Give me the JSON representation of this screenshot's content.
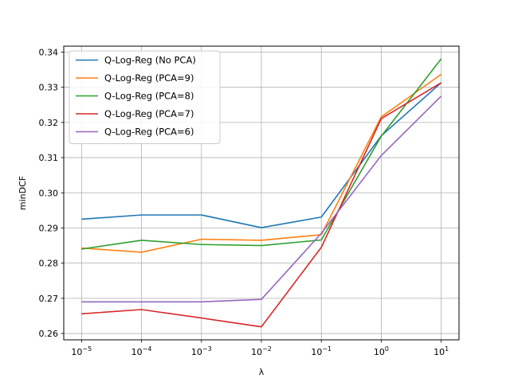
{
  "chart_data": {
    "type": "line",
    "title": "",
    "xlabel": "λ",
    "ylabel": "minDCF",
    "x_scale": "log",
    "x": [
      1e-05,
      0.0001,
      0.001,
      0.01,
      0.1,
      1,
      10
    ],
    "x_tick_labels": [
      {
        "base": "10",
        "exp": "−5"
      },
      {
        "base": "10",
        "exp": "−4"
      },
      {
        "base": "10",
        "exp": "−3"
      },
      {
        "base": "10",
        "exp": "−2"
      },
      {
        "base": "10",
        "exp": "−1"
      },
      {
        "base": "10",
        "exp": "0"
      },
      {
        "base": "10",
        "exp": "1"
      }
    ],
    "y_ticks": [
      0.26,
      0.27,
      0.28,
      0.29,
      0.3,
      0.31,
      0.32,
      0.33,
      0.34
    ],
    "y_tick_labels": [
      "0.26",
      "0.27",
      "0.28",
      "0.29",
      "0.30",
      "0.31",
      "0.32",
      "0.33",
      "0.34"
    ],
    "ylim": [
      0.2582,
      0.3417
    ],
    "grid": true,
    "legend_position": "top-left",
    "series": [
      {
        "name": "Q-Log-Reg (No PCA)",
        "color": "#1f77b4",
        "values": [
          0.2925,
          0.2937,
          0.2937,
          0.2901,
          0.2931,
          0.3162,
          0.3313
        ]
      },
      {
        "name": "Q-Log-Reg (PCA=9)",
        "color": "#ff7f0e",
        "values": [
          0.2843,
          0.2831,
          0.2868,
          0.2865,
          0.2881,
          0.3216,
          0.3337
        ]
      },
      {
        "name": "Q-Log-Reg (PCA=8)",
        "color": "#2ca02c",
        "values": [
          0.284,
          0.2865,
          0.2853,
          0.285,
          0.2866,
          0.3161,
          0.3381
        ]
      },
      {
        "name": "Q-Log-Reg (PCA=7)",
        "color": "#d62728",
        "values": [
          0.2656,
          0.2668,
          0.2644,
          0.2619,
          0.2845,
          0.3211,
          0.3313
        ]
      },
      {
        "name": "Q-Log-Reg (PCA=6)",
        "color": "#9467bd",
        "values": [
          0.269,
          0.269,
          0.269,
          0.2697,
          0.2885,
          0.3106,
          0.3275
        ]
      }
    ]
  }
}
